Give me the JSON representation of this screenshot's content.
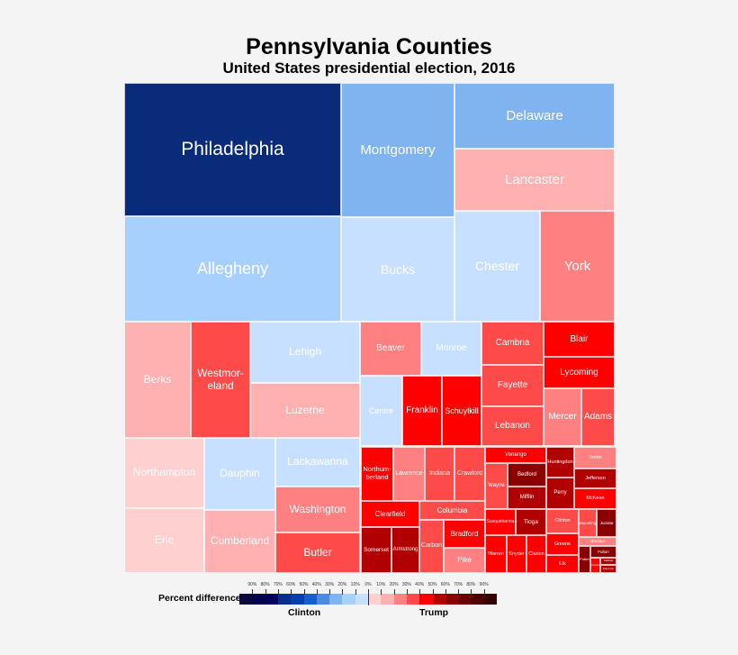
{
  "chart_data": {
    "type": "treemap",
    "title": "Pennsylvania Counties",
    "subtitle": "United States presidential election, 2016",
    "legend": {
      "label": "Percent difference:",
      "left_name": "Clinton",
      "right_name": "Trump",
      "ticks": [
        "90%",
        "80%",
        "70%",
        "60%",
        "50%",
        "40%",
        "30%",
        "20%",
        "10%",
        "0%",
        "10%",
        "20%",
        "30%",
        "40%",
        "50%",
        "60%",
        "70%",
        "80%",
        "90%"
      ],
      "colors": [
        "#0a0a3a",
        "#00004f",
        "#000060",
        "#003090",
        "#0040b0",
        "#1060d0",
        "#4a8ae0",
        "#80b4f0",
        "#a8d0ff",
        "#c8e0ff",
        "#ffd0d0",
        "#ffb0b0",
        "#ff8080",
        "#ff4a4a",
        "#ff0000",
        "#b00000",
        "#8a0000",
        "#6a0000",
        "#500000",
        "#350000"
      ]
    },
    "counties": [
      {
        "name": "Philadelphia",
        "color": "#0a2a7a"
      },
      {
        "name": "Montgomery",
        "color": "#80b4f0"
      },
      {
        "name": "Delaware",
        "color": "#80b4f0"
      },
      {
        "name": "Lancaster",
        "color": "#ffb0b0"
      },
      {
        "name": "Allegheny",
        "color": "#a8d0ff"
      },
      {
        "name": "Bucks",
        "color": "#c8e0ff"
      },
      {
        "name": "Chester",
        "color": "#c8e0ff"
      },
      {
        "name": "York",
        "color": "#ff8080"
      },
      {
        "name": "Berks",
        "color": "#ffb0b0"
      },
      {
        "name": "Westmor-\neland",
        "color": "#ff4a4a"
      },
      {
        "name": "Lehigh",
        "color": "#c8e0ff"
      },
      {
        "name": "Luzerne",
        "color": "#ffb0b0"
      },
      {
        "name": "Beaver",
        "color": "#ff8080"
      },
      {
        "name": "Monroe",
        "color": "#c8e0ff"
      },
      {
        "name": "Centre",
        "color": "#c8e0ff"
      },
      {
        "name": "Franklin",
        "color": "#ff0000"
      },
      {
        "name": "Schuylkill",
        "color": "#ff0000"
      },
      {
        "name": "Cambria",
        "color": "#ff4a4a"
      },
      {
        "name": "Fayette",
        "color": "#ff4a4a"
      },
      {
        "name": "Lebanon",
        "color": "#ff4a4a"
      },
      {
        "name": "Blair",
        "color": "#ff0000"
      },
      {
        "name": "Lycoming",
        "color": "#ff0000"
      },
      {
        "name": "Mercer",
        "color": "#ff8080"
      },
      {
        "name": "Adams",
        "color": "#ff4a4a"
      },
      {
        "name": "Northampton",
        "color": "#ffd0d0"
      },
      {
        "name": "Erie",
        "color": "#ffd0d0"
      },
      {
        "name": "Dauphin",
        "color": "#c8e0ff"
      },
      {
        "name": "Cumberland",
        "color": "#ffb0b0"
      },
      {
        "name": "Lackawanna",
        "color": "#c8e0ff"
      },
      {
        "name": "Washington",
        "color": "#ff8080"
      },
      {
        "name": "Butler",
        "color": "#ff4a4a"
      },
      {
        "name": "Northum-\nberland",
        "color": "#ff0000"
      },
      {
        "name": "Lawrence",
        "color": "#ff8080"
      },
      {
        "name": "Indiana",
        "color": "#ff4a4a"
      },
      {
        "name": "Crawford",
        "color": "#ff4a4a"
      },
      {
        "name": "Clearfield",
        "color": "#ff0000"
      },
      {
        "name": "Columbia",
        "color": "#ff4a4a"
      },
      {
        "name": "Somerset",
        "color": "#b00000"
      },
      {
        "name": "Armstrong",
        "color": "#b00000"
      },
      {
        "name": "Carbon",
        "color": "#ff4a4a"
      },
      {
        "name": "Bradford",
        "color": "#ff0000"
      },
      {
        "name": "Pike",
        "color": "#ff8080"
      },
      {
        "name": "Venango",
        "color": "#ff0000"
      },
      {
        "name": "Wayne",
        "color": "#ff4a4a"
      },
      {
        "name": "Bedford",
        "color": "#8a0000"
      },
      {
        "name": "Mifflin",
        "color": "#b00000"
      },
      {
        "name": "Huntingdon",
        "color": "#b00000"
      },
      {
        "name": "Perry",
        "color": "#b00000"
      },
      {
        "name": "Union",
        "color": "#ff8080"
      },
      {
        "name": "Jefferson",
        "color": "#b00000"
      },
      {
        "name": "McKean",
        "color": "#ff0000"
      },
      {
        "name": "Susquehanna",
        "color": "#ff0000"
      },
      {
        "name": "Tioga",
        "color": "#b00000"
      },
      {
        "name": "Warren",
        "color": "#ff0000"
      },
      {
        "name": "Snyder",
        "color": "#ff0000"
      },
      {
        "name": "Clarion",
        "color": "#ff0000"
      },
      {
        "name": "Clinton",
        "color": "#ff4a4a"
      },
      {
        "name": "Greene",
        "color": "#ff0000"
      },
      {
        "name": "Elk",
        "color": "#ff0000"
      },
      {
        "name": "Wyoming",
        "color": "#ff4a4a"
      },
      {
        "name": "Juniata",
        "color": "#8a0000"
      },
      {
        "name": "Montour",
        "color": "#ff8080"
      },
      {
        "name": "Potter",
        "color": "#8a0000"
      },
      {
        "name": "Fulton",
        "color": "#8a0000"
      },
      {
        "name": "Forest",
        "color": "#ff0000"
      },
      {
        "name": "Sullivan",
        "color": "#b00000"
      },
      {
        "name": "Cameron",
        "color": "#b00000"
      }
    ]
  }
}
